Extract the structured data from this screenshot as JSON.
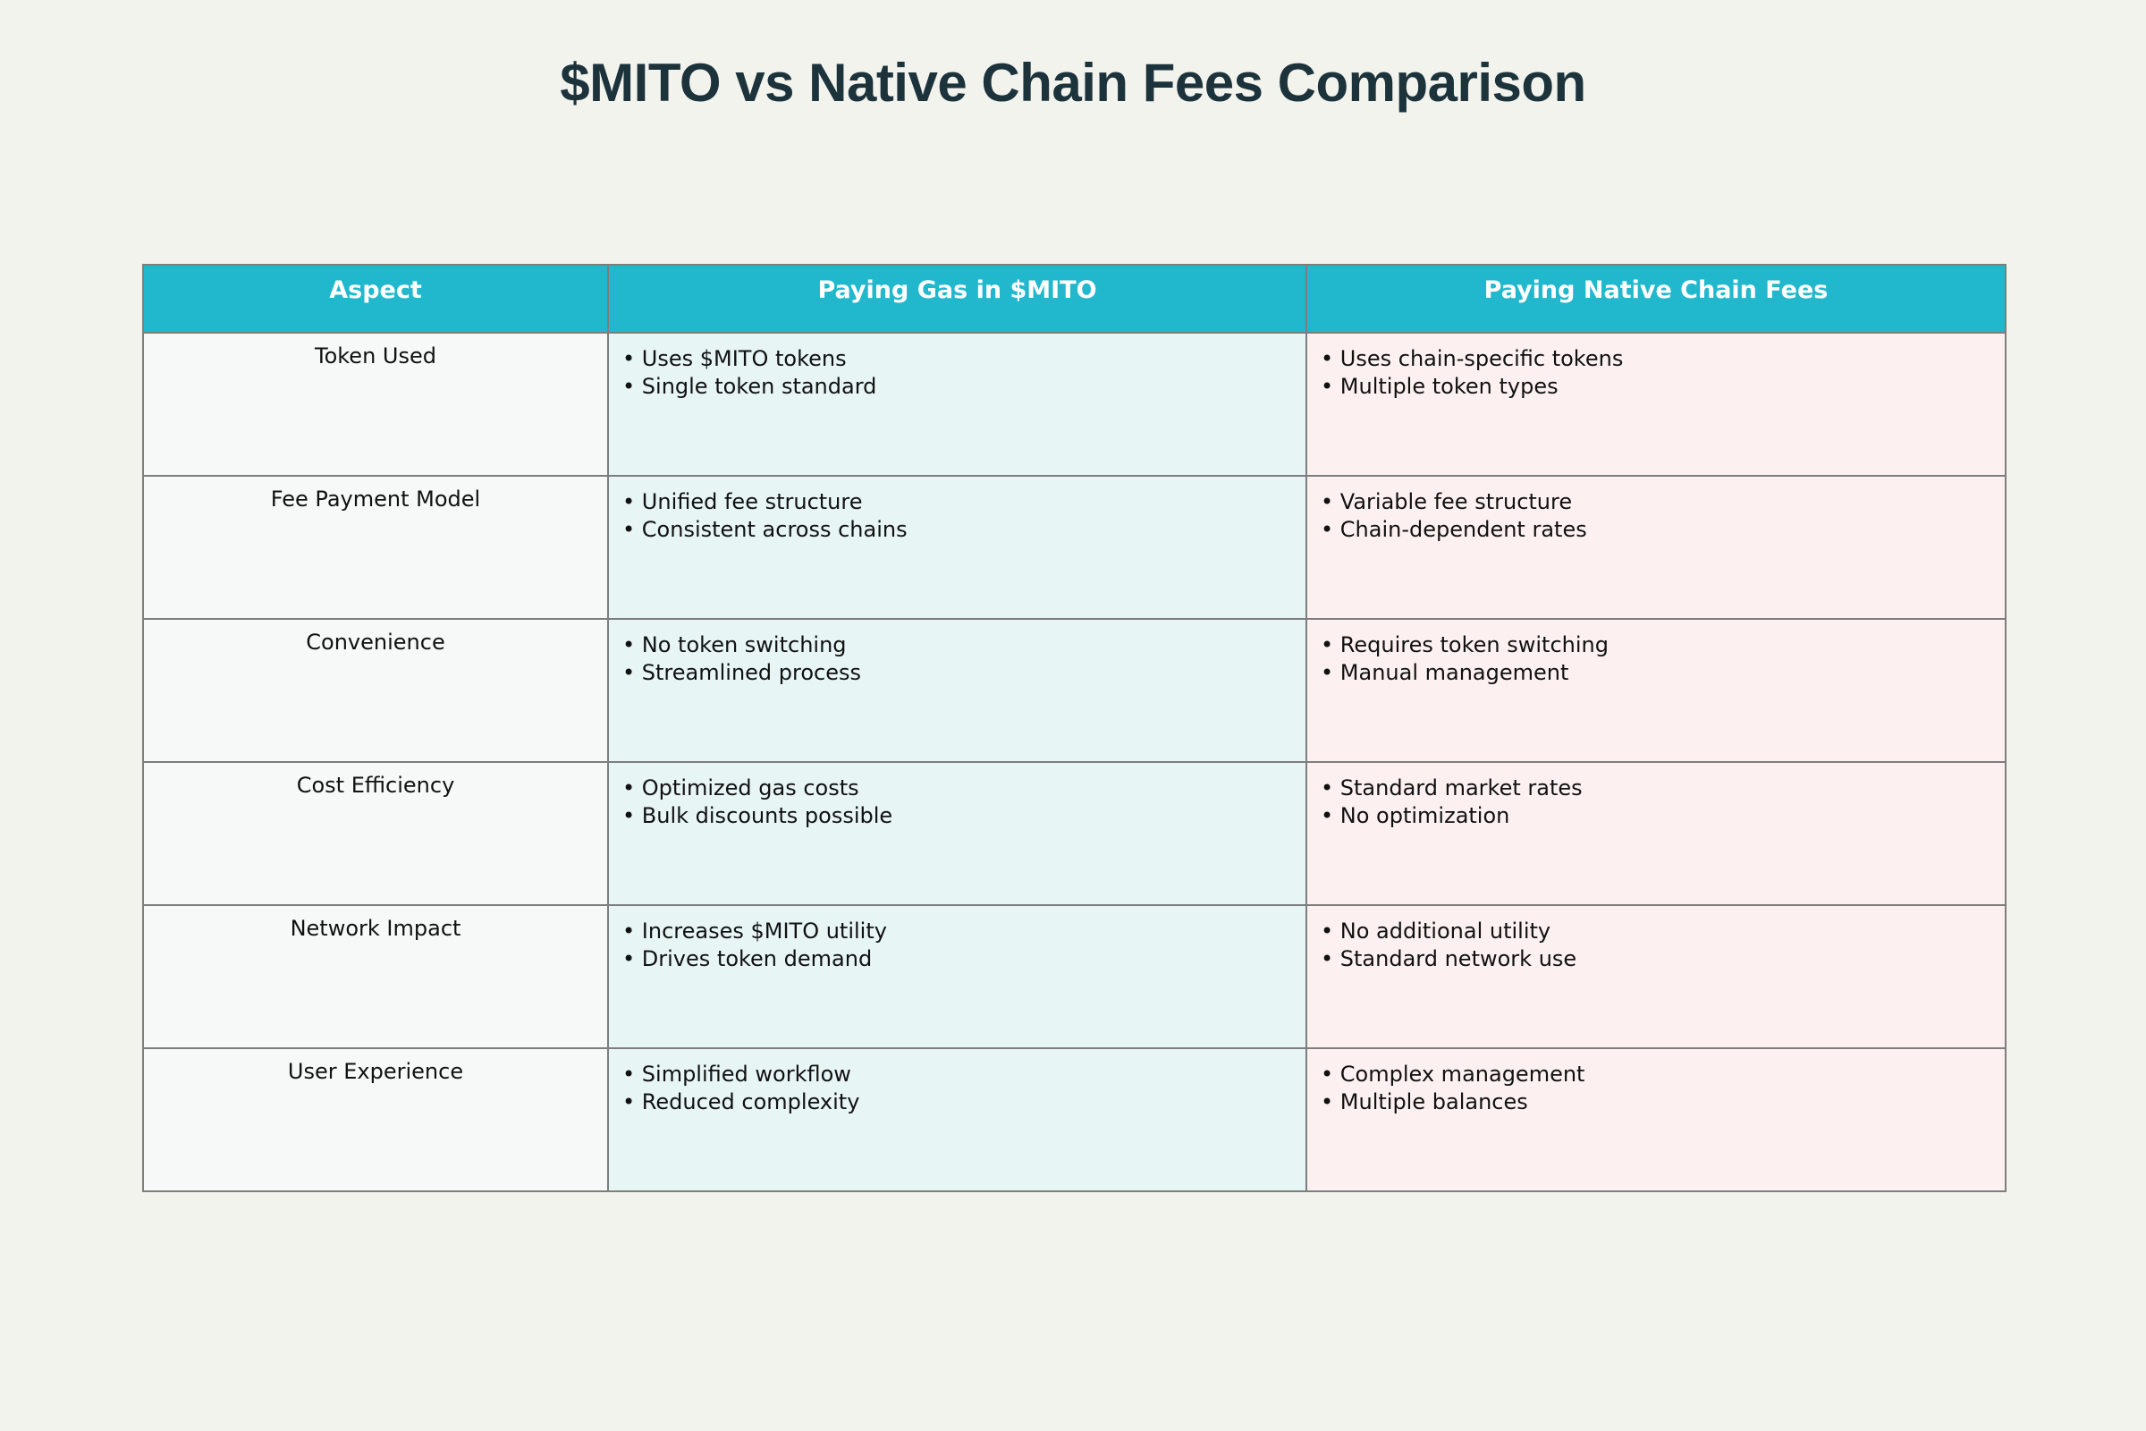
{
  "title": "$MITO vs Native Chain Fees Comparison",
  "chart_data": {
    "type": "table",
    "title": "$MITO vs Native Chain Fees Comparison",
    "columns": [
      "Aspect",
      "Paying Gas in $MITO",
      "Paying Native Chain Fees"
    ],
    "colors": {
      "header": "#21b8cd",
      "aspect_column": "#f7f8f8",
      "mito_column": "#e7f5f5",
      "native_column": "#fcf1f0",
      "title": "#1c333b",
      "background": "#f3f3ee"
    },
    "rows": [
      {
        "aspect": "Token Used",
        "mito": [
          "• Uses $MITO tokens",
          "• Single token standard"
        ],
        "native": [
          "• Uses chain-specific tokens",
          "• Multiple token types"
        ]
      },
      {
        "aspect": "Fee Payment Model",
        "mito": [
          "• Unified fee structure",
          "• Consistent across chains"
        ],
        "native": [
          "• Variable fee structure",
          "• Chain-dependent rates"
        ]
      },
      {
        "aspect": "Convenience",
        "mito": [
          "• No token switching",
          "• Streamlined process"
        ],
        "native": [
          "• Requires token switching",
          "• Manual management"
        ]
      },
      {
        "aspect": "Cost Efficiency",
        "mito": [
          "• Optimized gas costs",
          "• Bulk discounts possible"
        ],
        "native": [
          "• Standard market rates",
          "• No optimization"
        ]
      },
      {
        "aspect": "Network Impact",
        "mito": [
          "• Increases $MITO utility",
          "• Drives token demand"
        ],
        "native": [
          "• No additional utility",
          "• Standard network use"
        ]
      },
      {
        "aspect": "User Experience",
        "mito": [
          "• Simplified workflow",
          "• Reduced complexity"
        ],
        "native": [
          "• Complex management",
          "• Multiple balances"
        ]
      }
    ]
  }
}
